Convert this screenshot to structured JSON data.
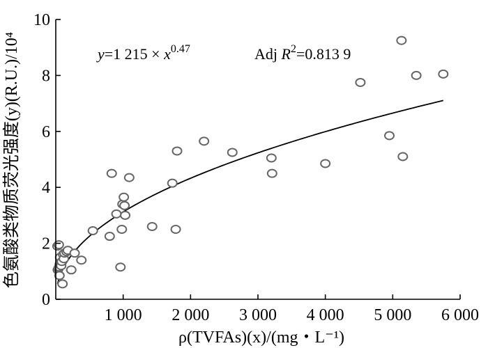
{
  "chart_data": {
    "type": "scatter",
    "title": "",
    "xlabel": "ρ(TVFAs)(x)/(mg・L⁻¹)",
    "ylabel": "色氨酸类物质荧光强度(y)(R.U.)/10⁴",
    "xlim": [
      0,
      6000
    ],
    "ylim": [
      0,
      10
    ],
    "x_ticks": [
      1000,
      2000,
      3000,
      4000,
      5000,
      6000
    ],
    "x_tick_labels": [
      "1 000",
      "2 000",
      "3 000",
      "4 000",
      "5 000",
      "6 000"
    ],
    "y_ticks": [
      0,
      2,
      4,
      6,
      8,
      10
    ],
    "y_tick_labels": [
      "0",
      "2",
      "4",
      "6",
      "8",
      "10"
    ],
    "grid": false,
    "legend": "none",
    "annotations": {
      "equation": "y=1 215 × x^0.47",
      "equation_parts": {
        "lhs": "y",
        "eq": "=1 215 × ",
        "base": "x",
        "exp": "0.47"
      },
      "adj_r2": "Adj R²=0.813 9",
      "adj_r2_parts": {
        "prefix": "Adj ",
        "sym": "R",
        "sup": "2",
        "rest": "=0.813 9"
      }
    },
    "fit": {
      "a": 1215,
      "b": 0.47,
      "scale": 10000,
      "x_range": [
        25,
        5750
      ]
    },
    "series": [
      {
        "x": [
          25,
          30,
          40,
          45,
          50,
          55,
          60,
          65,
          70,
          80,
          90,
          100,
          110,
          120,
          130,
          160,
          180,
          230,
          280,
          380,
          550,
          800,
          830,
          900,
          960,
          980,
          990,
          1010,
          1020,
          1030,
          1090,
          1430,
          1730,
          1780,
          1800,
          2200,
          2620,
          3200,
          3210,
          4000,
          4520,
          4950,
          5130,
          5150,
          5350,
          5750
        ],
        "y": [
          1.9,
          1.05,
          1.1,
          1.95,
          1.15,
          0.85,
          1.25,
          1.5,
          1.3,
          1.2,
          1.35,
          0.55,
          1.6,
          1.45,
          1.65,
          1.7,
          1.75,
          1.05,
          1.65,
          1.4,
          2.45,
          2.25,
          4.5,
          3.05,
          1.15,
          2.5,
          3.4,
          3.65,
          3.35,
          3.0,
          4.35,
          2.6,
          4.15,
          2.5,
          5.3,
          5.65,
          5.25,
          5.05,
          4.5,
          4.85,
          7.75,
          5.85,
          9.25,
          5.1,
          8.0,
          8.05
        ]
      }
    ]
  }
}
